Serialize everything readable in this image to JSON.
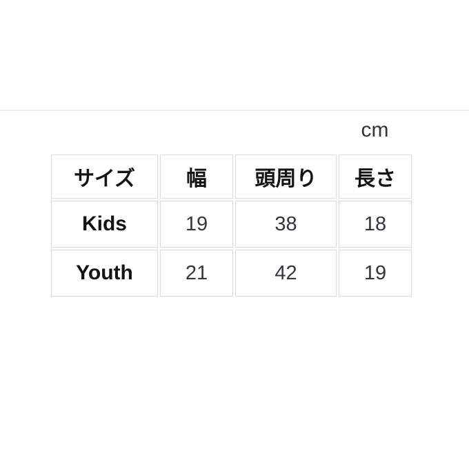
{
  "page": {
    "background_color": "#ffffff",
    "divider_color": "#ededed"
  },
  "unit_label": "cm",
  "size_table": {
    "border_color": "#d9dce1",
    "headers": [
      "サイズ",
      "幅",
      "頭周り",
      "長さ"
    ],
    "rows": [
      [
        "Kids",
        "19",
        "38",
        "18"
      ],
      [
        "Youth",
        "21",
        "42",
        "19"
      ]
    ]
  },
  "chart_data": {
    "type": "table",
    "title": "",
    "unit": "cm",
    "columns": [
      "サイズ",
      "幅",
      "頭周り",
      "長さ"
    ],
    "rows": [
      {
        "サイズ": "Kids",
        "幅": 19,
        "頭周り": 38,
        "長さ": 18
      },
      {
        "サイズ": "Youth",
        "幅": 21,
        "頭周り": 42,
        "長さ": 19
      }
    ],
    "layout_hints": {
      "header_row_bold": true,
      "first_column_bold": true,
      "cell_alignment": "center",
      "grid": "separated-cells"
    }
  }
}
